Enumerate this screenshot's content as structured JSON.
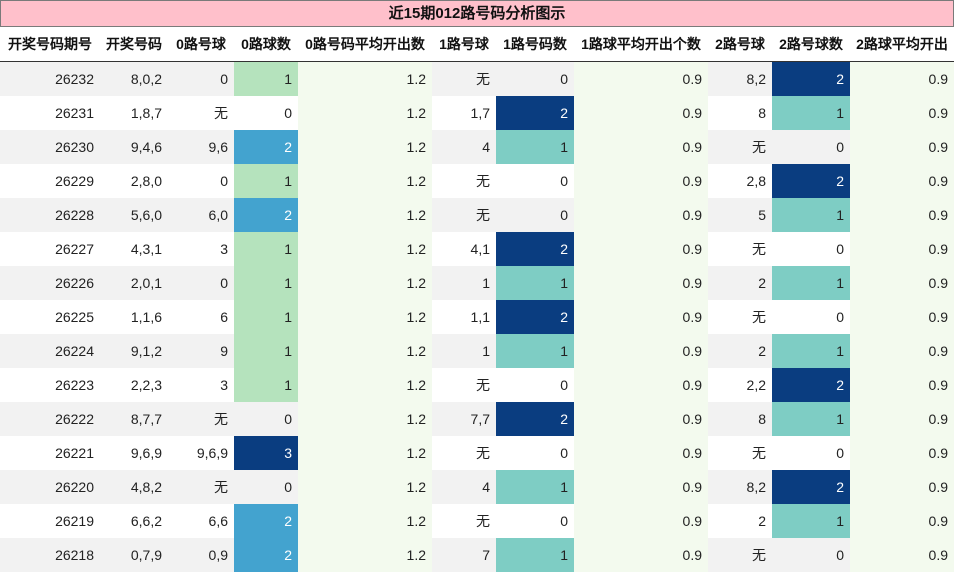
{
  "title": "近15期012路号码分析图示",
  "headers": [
    "开奖号码期号",
    "开奖号码",
    "0路号球",
    "0路球数",
    "0路号码平均开出数",
    "1路号球",
    "1路号码数",
    "1路球平均开出个数",
    "2路号球",
    "2路号球数",
    "2路球平均开出"
  ],
  "colors": {
    "title_bg": "#ffc0cb",
    "count_1_zero_route": "#b5e3bd",
    "count_1": "#7ecdc4",
    "count_2_zero_route": "#43a3cf",
    "count_2": "#0a3d80",
    "count_3": "#0a3d80",
    "avg_bg": "#f3faee",
    "stripe": "#f2f2f2"
  },
  "rows": [
    {
      "issue": "26232",
      "nums": "8,0,2",
      "r0": "0",
      "r0c": "1",
      "r0avg": "1.2",
      "r1": "无",
      "r1c": "0",
      "r1avg": "0.9",
      "r2": "8,2",
      "r2c": "2",
      "r2avg": "0.9"
    },
    {
      "issue": "26231",
      "nums": "1,8,7",
      "r0": "无",
      "r0c": "0",
      "r0avg": "1.2",
      "r1": "1,7",
      "r1c": "2",
      "r1avg": "0.9",
      "r2": "8",
      "r2c": "1",
      "r2avg": "0.9"
    },
    {
      "issue": "26230",
      "nums": "9,4,6",
      "r0": "9,6",
      "r0c": "2",
      "r0avg": "1.2",
      "r1": "4",
      "r1c": "1",
      "r1avg": "0.9",
      "r2": "无",
      "r2c": "0",
      "r2avg": "0.9"
    },
    {
      "issue": "26229",
      "nums": "2,8,0",
      "r0": "0",
      "r0c": "1",
      "r0avg": "1.2",
      "r1": "无",
      "r1c": "0",
      "r1avg": "0.9",
      "r2": "2,8",
      "r2c": "2",
      "r2avg": "0.9"
    },
    {
      "issue": "26228",
      "nums": "5,6,0",
      "r0": "6,0",
      "r0c": "2",
      "r0avg": "1.2",
      "r1": "无",
      "r1c": "0",
      "r1avg": "0.9",
      "r2": "5",
      "r2c": "1",
      "r2avg": "0.9"
    },
    {
      "issue": "26227",
      "nums": "4,3,1",
      "r0": "3",
      "r0c": "1",
      "r0avg": "1.2",
      "r1": "4,1",
      "r1c": "2",
      "r1avg": "0.9",
      "r2": "无",
      "r2c": "0",
      "r2avg": "0.9"
    },
    {
      "issue": "26226",
      "nums": "2,0,1",
      "r0": "0",
      "r0c": "1",
      "r0avg": "1.2",
      "r1": "1",
      "r1c": "1",
      "r1avg": "0.9",
      "r2": "2",
      "r2c": "1",
      "r2avg": "0.9"
    },
    {
      "issue": "26225",
      "nums": "1,1,6",
      "r0": "6",
      "r0c": "1",
      "r0avg": "1.2",
      "r1": "1,1",
      "r1c": "2",
      "r1avg": "0.9",
      "r2": "无",
      "r2c": "0",
      "r2avg": "0.9"
    },
    {
      "issue": "26224",
      "nums": "9,1,2",
      "r0": "9",
      "r0c": "1",
      "r0avg": "1.2",
      "r1": "1",
      "r1c": "1",
      "r1avg": "0.9",
      "r2": "2",
      "r2c": "1",
      "r2avg": "0.9"
    },
    {
      "issue": "26223",
      "nums": "2,2,3",
      "r0": "3",
      "r0c": "1",
      "r0avg": "1.2",
      "r1": "无",
      "r1c": "0",
      "r1avg": "0.9",
      "r2": "2,2",
      "r2c": "2",
      "r2avg": "0.9"
    },
    {
      "issue": "26222",
      "nums": "8,7,7",
      "r0": "无",
      "r0c": "0",
      "r0avg": "1.2",
      "r1": "7,7",
      "r1c": "2",
      "r1avg": "0.9",
      "r2": "8",
      "r2c": "1",
      "r2avg": "0.9"
    },
    {
      "issue": "26221",
      "nums": "9,6,9",
      "r0": "9,6,9",
      "r0c": "3",
      "r0avg": "1.2",
      "r1": "无",
      "r1c": "0",
      "r1avg": "0.9",
      "r2": "无",
      "r2c": "0",
      "r2avg": "0.9"
    },
    {
      "issue": "26220",
      "nums": "4,8,2",
      "r0": "无",
      "r0c": "0",
      "r0avg": "1.2",
      "r1": "4",
      "r1c": "1",
      "r1avg": "0.9",
      "r2": "8,2",
      "r2c": "2",
      "r2avg": "0.9"
    },
    {
      "issue": "26219",
      "nums": "6,6,2",
      "r0": "6,6",
      "r0c": "2",
      "r0avg": "1.2",
      "r1": "无",
      "r1c": "0",
      "r1avg": "0.9",
      "r2": "2",
      "r2c": "1",
      "r2avg": "0.9"
    },
    {
      "issue": "26218",
      "nums": "0,7,9",
      "r0": "0,9",
      "r0c": "2",
      "r0avg": "1.2",
      "r1": "7",
      "r1c": "1",
      "r1avg": "0.9",
      "r2": "无",
      "r2c": "0",
      "r2avg": "0.9"
    }
  ]
}
